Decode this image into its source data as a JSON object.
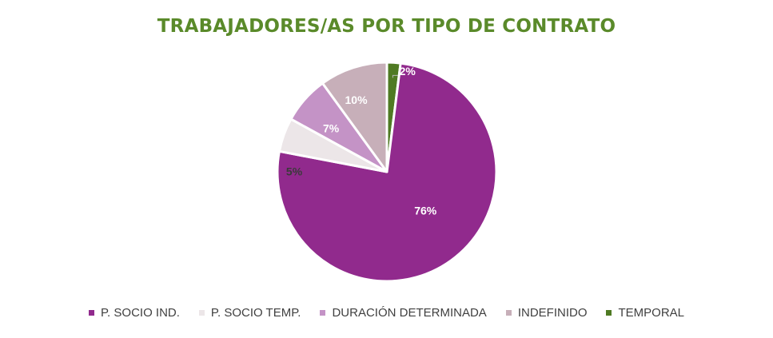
{
  "chart_data": {
    "type": "pie",
    "title": "TRABAJADORES/AS POR TIPO DE CONTRATO",
    "start_angle_deg": 0,
    "direction": "clockwise",
    "legend_position": "bottom",
    "slices": [
      {
        "name": "TEMPORAL",
        "value": 2,
        "label": "2%",
        "color": "#4f7a23",
        "label_color": "#ffffff"
      },
      {
        "name": "P. SOCIO IND.",
        "value": 76,
        "label": "76%",
        "color": "#912a8d",
        "label_color": "#ffffff"
      },
      {
        "name": "P. SOCIO TEMP.",
        "value": 5,
        "label": "5%",
        "color": "#ece6e8",
        "label_color": "#3a3a3a"
      },
      {
        "name": "DURACIÓN DETERMINADA",
        "value": 7,
        "label": "7%",
        "color": "#c493c6",
        "label_color": "#ffffff"
      },
      {
        "name": "INDEFINIDO",
        "value": 10,
        "label": "10%",
        "color": "#c7afb9",
        "label_color": "#ffffff"
      }
    ],
    "legend_order": [
      "P. SOCIO IND.",
      "P. SOCIO TEMP.",
      "DURACIÓN DETERMINADA",
      "INDEFINIDO",
      "TEMPORAL"
    ]
  }
}
